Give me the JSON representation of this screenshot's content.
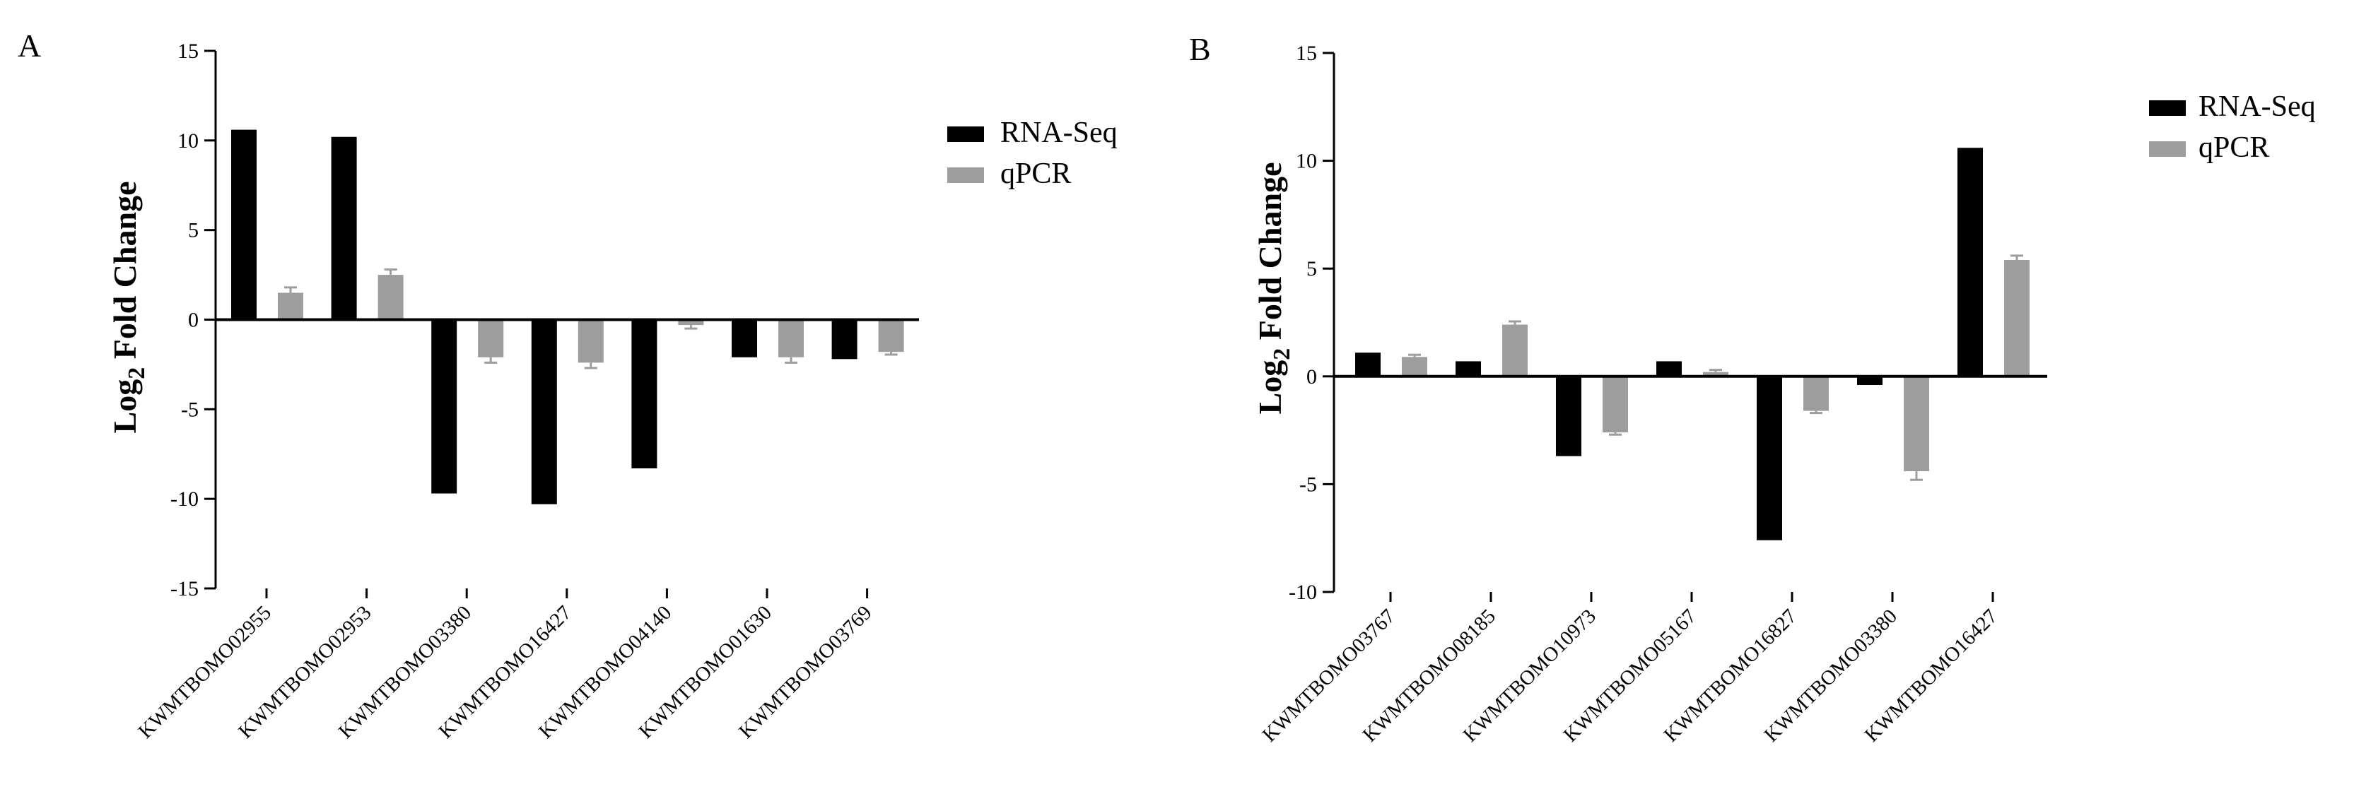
{
  "colors": {
    "rna_seq": "#000000",
    "qpcr": "#9d9d9d",
    "axis": "#000000"
  },
  "chart_data": [
    {
      "panel": "A",
      "type": "bar",
      "ylabel_main": "Log",
      "ylabel_sub": "2",
      "ylabel_rest": "Fold Change",
      "ylim": [
        -15,
        15
      ],
      "yticks": [
        15,
        10,
        5,
        0,
        -5,
        -10,
        -15
      ],
      "legend": {
        "placement": "top-right",
        "entries": [
          "RNA-Seq",
          "qPCR"
        ]
      },
      "categories": [
        "KWMTBOMO02955",
        "KWMTBOMO02953",
        "KWMTBOMO03380",
        "KWMTBOMO16427",
        "KWMTBOMO04140",
        "KWMTBOMO01630",
        "KWMTBOMO03769"
      ],
      "series": [
        {
          "name": "RNA-Seq",
          "values": [
            10.6,
            10.2,
            -9.7,
            -10.3,
            -8.3,
            -2.1,
            -2.2
          ],
          "errors": [
            0,
            0,
            0,
            0,
            0,
            0,
            0
          ]
        },
        {
          "name": "qPCR",
          "values": [
            1.5,
            2.5,
            -2.1,
            -2.4,
            -0.3,
            -2.1,
            -1.8
          ],
          "errors": [
            0.3,
            0.3,
            0.3,
            0.3,
            0.2,
            0.3,
            0.15
          ]
        }
      ]
    },
    {
      "panel": "B",
      "type": "bar",
      "ylabel_main": "Log",
      "ylabel_sub": "2",
      "ylabel_rest": "Fold Change",
      "ylim": [
        -10,
        15
      ],
      "yticks": [
        15,
        10,
        5,
        0,
        -5,
        -10
      ],
      "legend": {
        "placement": "top-right",
        "entries": [
          "RNA-Seq",
          "qPCR"
        ]
      },
      "categories": [
        "KWMTBOMO03767",
        "KWMTBOMO08185",
        "KWMTBOMO10973",
        "KWMTBOMO05167",
        "KWMTBOMO16827",
        "KWMTBOMO03380",
        "KWMTBOMO16427"
      ],
      "series": [
        {
          "name": "RNA-Seq",
          "values": [
            1.1,
            0.7,
            -3.7,
            0.7,
            -7.6,
            -0.4,
            10.6
          ],
          "errors": [
            0,
            0,
            0,
            0,
            0,
            0,
            0
          ]
        },
        {
          "name": "qPCR",
          "values": [
            0.9,
            2.4,
            -2.6,
            0.2,
            -1.6,
            -4.4,
            5.4
          ],
          "errors": [
            0.1,
            0.15,
            0.1,
            0.1,
            0.1,
            0.4,
            0.2
          ]
        }
      ]
    }
  ]
}
